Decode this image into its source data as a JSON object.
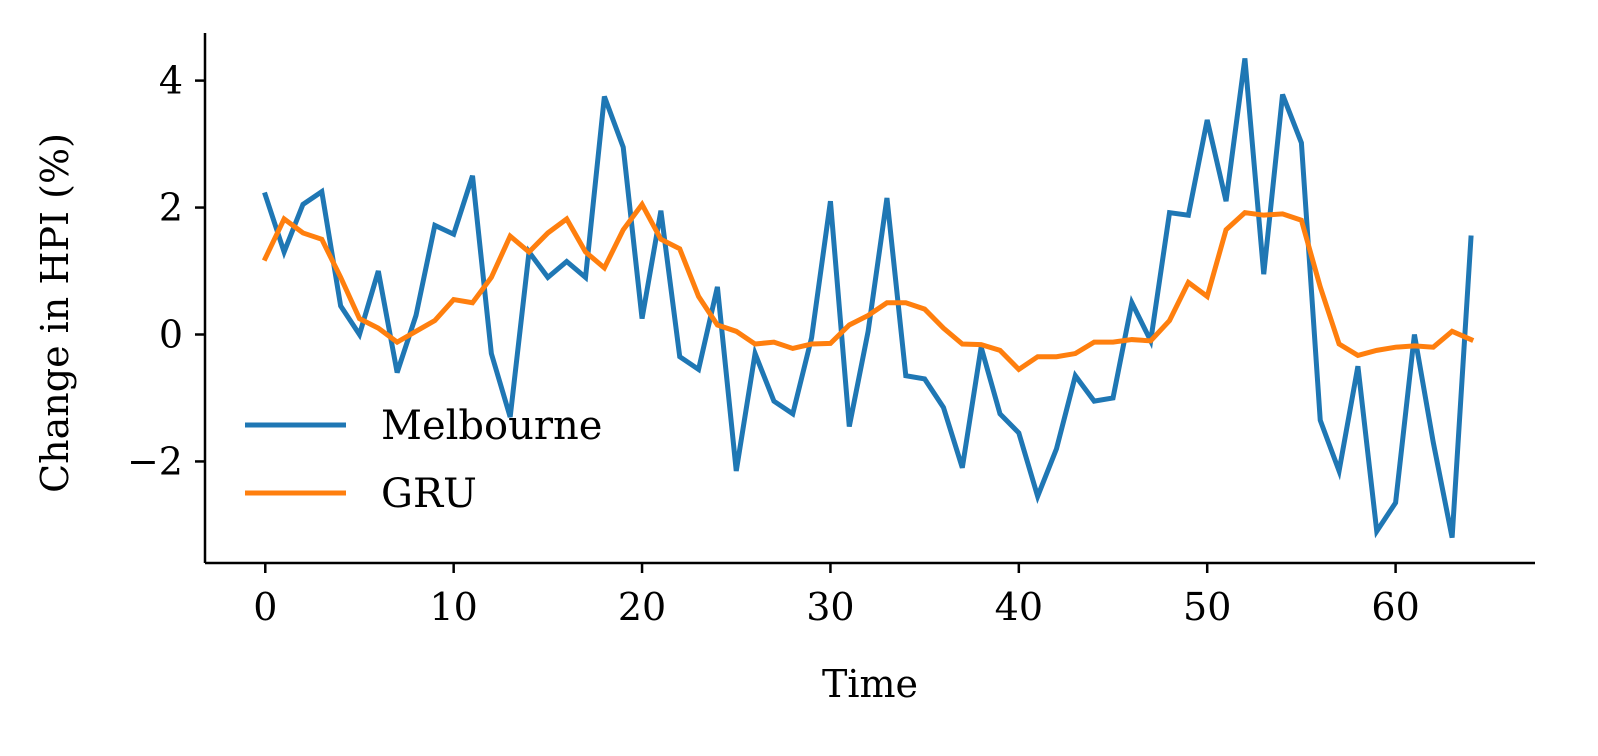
{
  "chart_data": {
    "type": "line",
    "title": "",
    "xlabel": "Time",
    "ylabel": "Change in HPI (%)",
    "xlim": [
      -3.2,
      67.4
    ],
    "ylim": [
      -3.6,
      4.75
    ],
    "xticks": [
      0,
      10,
      20,
      30,
      40,
      50,
      60
    ],
    "yticks": [
      -2,
      0,
      2,
      4
    ],
    "ytick_labels": [
      "−2",
      "0",
      "2",
      "4"
    ],
    "grid": false,
    "legend_position": "lower-left",
    "series": [
      {
        "name": "Melbourne",
        "color": "#1f77b4",
        "x": [
          0,
          1,
          2,
          3,
          4,
          5,
          6,
          7,
          8,
          9,
          10,
          11,
          12,
          13,
          14,
          15,
          16,
          17,
          18,
          19,
          20,
          21,
          22,
          23,
          24,
          25,
          26,
          27,
          28,
          29,
          30,
          31,
          32,
          33,
          34,
          35,
          36,
          37,
          38,
          39,
          40,
          41,
          42,
          43,
          44,
          45,
          46,
          47,
          48,
          49,
          50,
          51,
          52,
          53,
          54,
          55,
          56,
          57,
          58,
          59,
          60,
          61,
          62,
          63,
          64
        ],
        "values": [
          2.2,
          1.3,
          2.05,
          2.25,
          0.45,
          0.0,
          1.0,
          -0.6,
          0.3,
          1.72,
          1.58,
          2.5,
          -0.3,
          -1.3,
          1.3,
          0.9,
          1.15,
          0.9,
          3.75,
          2.95,
          0.25,
          1.95,
          -0.35,
          -0.55,
          0.75,
          -2.15,
          -0.3,
          -1.05,
          -1.25,
          -0.05,
          2.1,
          -1.45,
          0.05,
          2.15,
          -0.65,
          -0.7,
          -1.15,
          -2.1,
          -0.2,
          -1.25,
          -1.55,
          -2.55,
          -1.8,
          -0.65,
          -1.05,
          -1.0,
          0.5,
          -0.1,
          1.92,
          1.88,
          3.38,
          2.1,
          4.35,
          0.95,
          3.78,
          3.02,
          -1.35,
          -2.15,
          -0.5,
          -3.1,
          -2.65,
          0.0,
          -1.7,
          -3.2,
          1.52
        ]
      },
      {
        "name": "GRU",
        "color": "#ff7f0e",
        "x": [
          0,
          1,
          2,
          3,
          4,
          5,
          6,
          7,
          8,
          9,
          10,
          11,
          12,
          13,
          14,
          15,
          16,
          17,
          18,
          19,
          20,
          21,
          22,
          23,
          24,
          25,
          26,
          27,
          28,
          29,
          30,
          31,
          32,
          33,
          34,
          35,
          36,
          37,
          38,
          39,
          40,
          41,
          42,
          43,
          44,
          45,
          46,
          47,
          48,
          49,
          50,
          51,
          52,
          53,
          54,
          55,
          56,
          57,
          58,
          59,
          60,
          61,
          62,
          63,
          64
        ],
        "values": [
          1.2,
          1.82,
          1.6,
          1.5,
          0.9,
          0.25,
          0.1,
          -0.12,
          0.05,
          0.22,
          0.55,
          0.5,
          0.9,
          1.55,
          1.3,
          1.6,
          1.82,
          1.3,
          1.05,
          1.65,
          2.05,
          1.5,
          1.35,
          0.6,
          0.15,
          0.05,
          -0.15,
          -0.12,
          -0.22,
          -0.15,
          -0.14,
          0.15,
          0.3,
          0.5,
          0.5,
          0.4,
          0.1,
          -0.15,
          -0.16,
          -0.25,
          -0.55,
          -0.35,
          -0.35,
          -0.3,
          -0.12,
          -0.12,
          -0.08,
          -0.1,
          0.22,
          0.82,
          0.6,
          1.65,
          1.92,
          1.88,
          1.9,
          1.8,
          0.75,
          -0.15,
          -0.33,
          -0.25,
          -0.2,
          -0.18,
          -0.2,
          0.05,
          -0.08
        ]
      }
    ]
  }
}
